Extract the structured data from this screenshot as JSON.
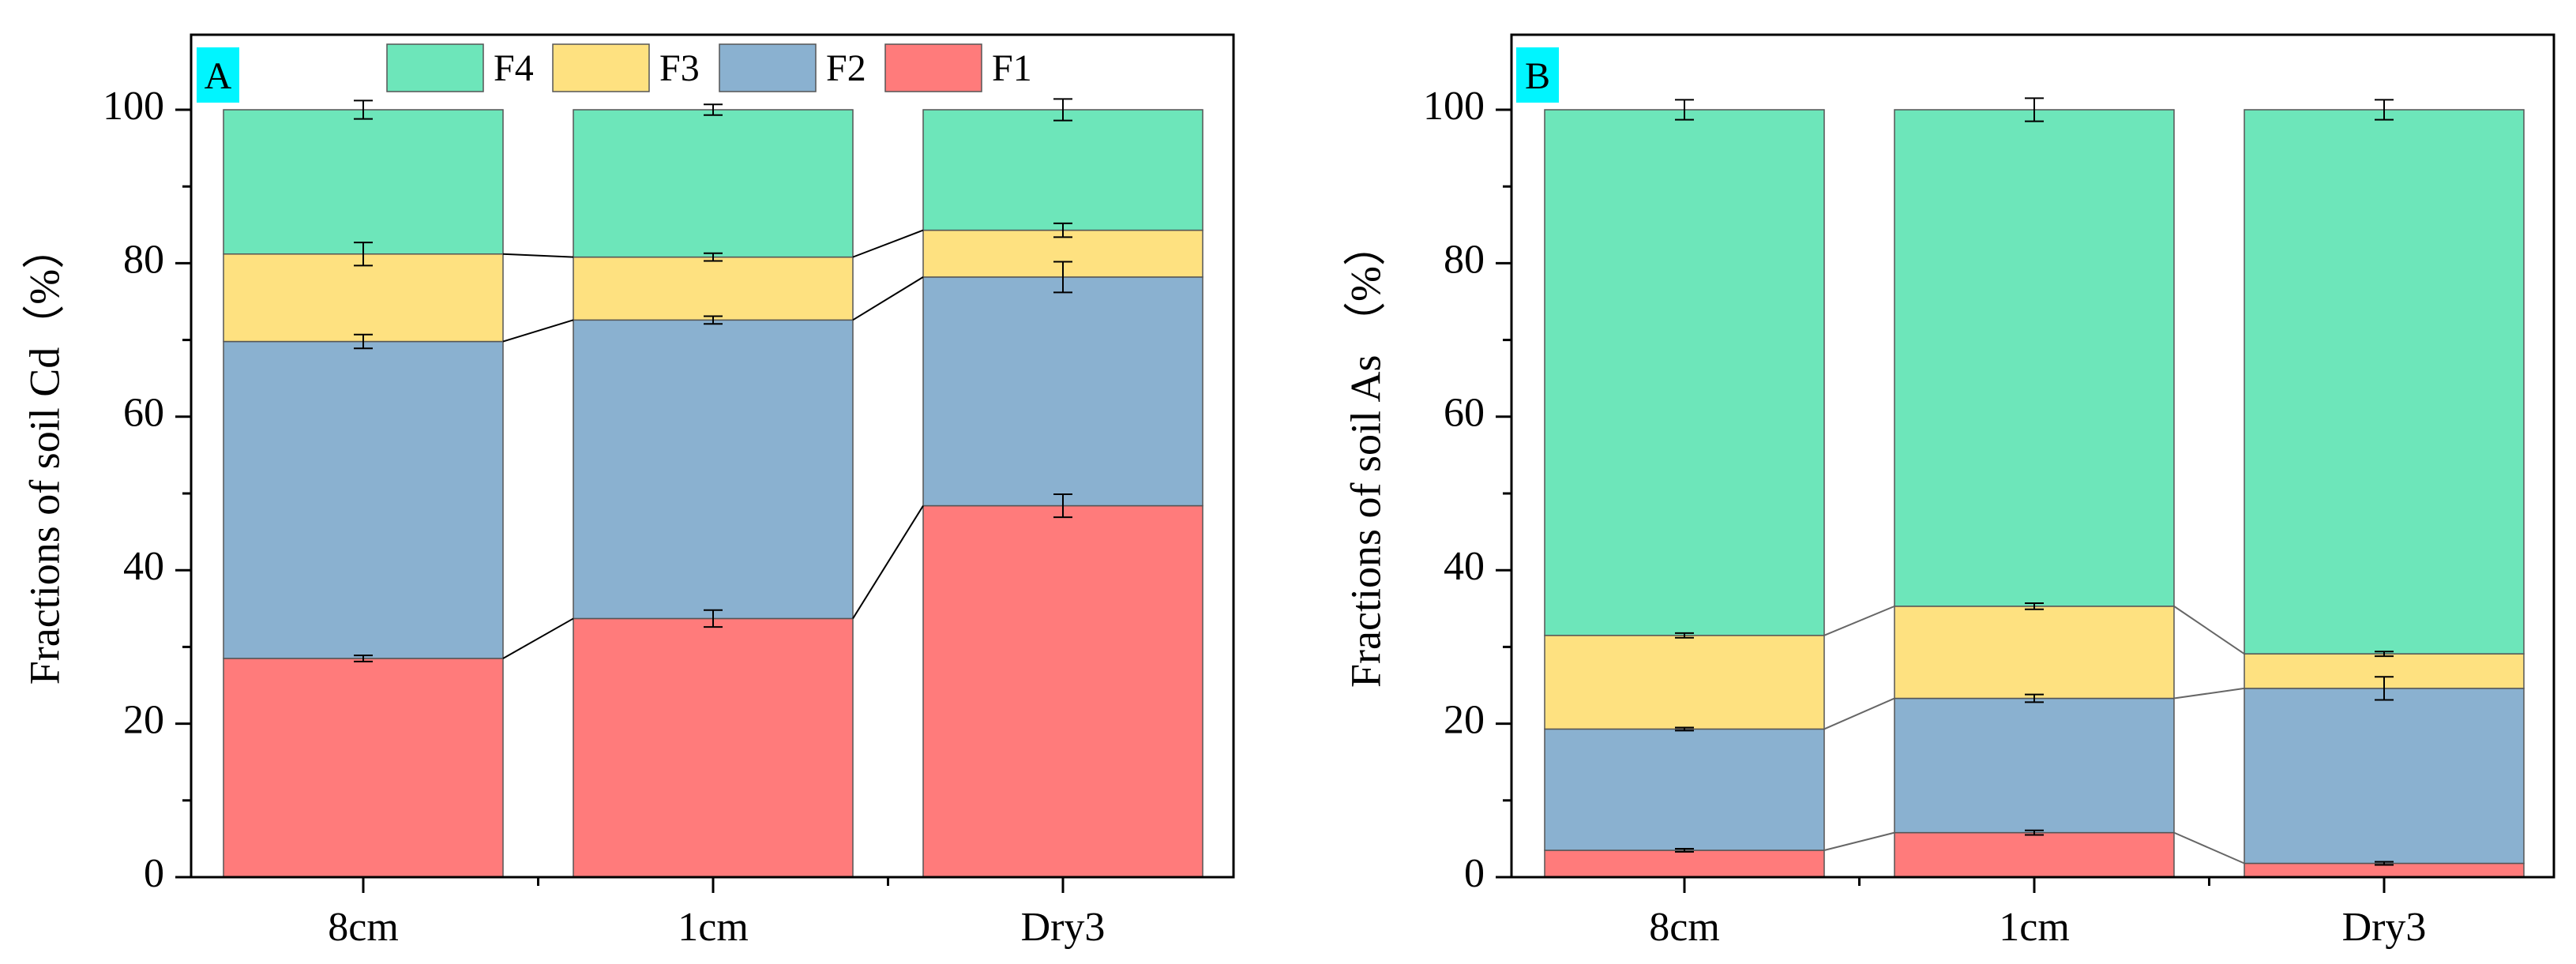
{
  "colors": {
    "F1": "#FF7B7B",
    "F2": "#8AB1D0",
    "F3": "#FEE180",
    "F4": "#6DE6BA",
    "panel_label_bg": "#00F5FF"
  },
  "legend": [
    "F4",
    "F3",
    "F2",
    "F1"
  ],
  "chart_data": [
    {
      "type": "bar",
      "stacked": true,
      "panel_label": "A",
      "ylabel": "Fractions of soil  Cd（%）",
      "xlabel": "",
      "ylim": [
        0,
        110
      ],
      "yticks": [
        "0",
        "20",
        "40",
        "60",
        "80",
        "100"
      ],
      "categories": [
        "8cm",
        "1cm",
        "Dry3"
      ],
      "series": [
        {
          "name": "F1",
          "values": [
            28.5,
            33.7,
            48.4
          ],
          "errors": [
            0.4,
            1.1,
            1.5
          ]
        },
        {
          "name": "F2",
          "values": [
            41.3,
            38.9,
            29.8
          ],
          "errors": [
            0.9,
            0.5,
            2.0
          ]
        },
        {
          "name": "F3",
          "values": [
            11.4,
            8.2,
            6.1
          ],
          "errors": [
            1.5,
            0.5,
            0.9
          ]
        },
        {
          "name": "F4",
          "values": [
            18.8,
            19.2,
            15.7
          ],
          "errors": [
            1.2,
            0.7,
            1.4
          ]
        }
      ],
      "legend_position": "top",
      "connector_lines": true
    },
    {
      "type": "bar",
      "stacked": true,
      "panel_label": "B",
      "ylabel": "Fractions of soil As （%）",
      "xlabel": "",
      "ylim": [
        0,
        110
      ],
      "yticks": [
        "0",
        "20",
        "40",
        "60",
        "80",
        "100"
      ],
      "categories": [
        "8cm",
        "1cm",
        "Dry3"
      ],
      "series": [
        {
          "name": "F1",
          "values": [
            3.5,
            5.8,
            1.8
          ],
          "errors": [
            0.2,
            0.3,
            0.2
          ]
        },
        {
          "name": "F2",
          "values": [
            15.8,
            17.5,
            22.8
          ],
          "errors": [
            0.2,
            0.5,
            1.5
          ]
        },
        {
          "name": "F3",
          "values": [
            12.2,
            12.0,
            4.5
          ],
          "errors": [
            0.3,
            0.4,
            0.3
          ]
        },
        {
          "name": "F4",
          "values": [
            68.5,
            64.7,
            70.9
          ],
          "errors": [
            1.3,
            1.5,
            1.3
          ]
        }
      ],
      "connector_lines": true
    }
  ]
}
